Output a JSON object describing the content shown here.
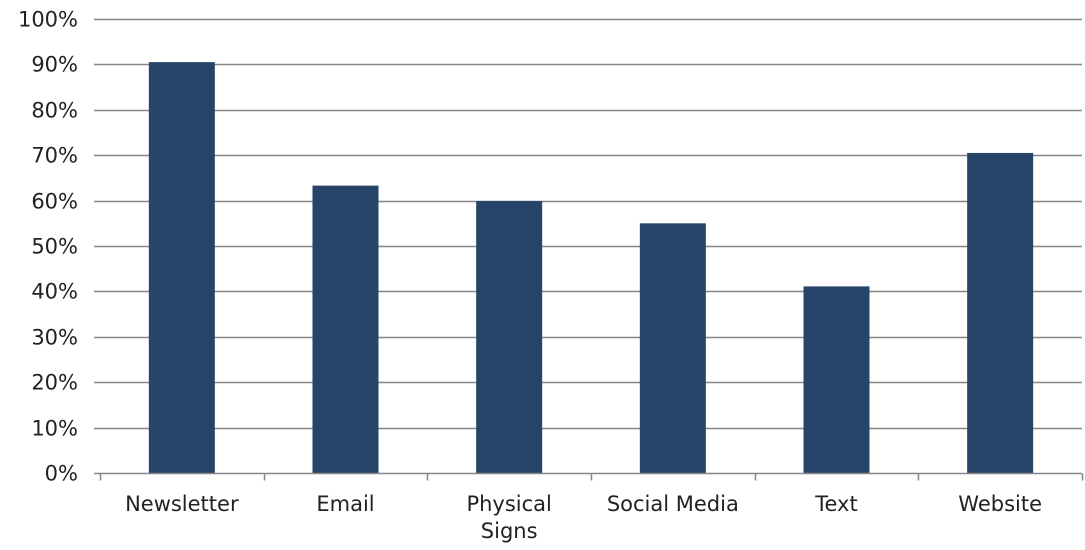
{
  "chart_data": {
    "type": "bar",
    "title": "",
    "xlabel": "",
    "ylabel": "",
    "categories": [
      "Newsletter",
      "Email",
      "Physical Signs",
      "Social Media",
      "Text",
      "Website"
    ],
    "category_lines": [
      [
        "Newsletter"
      ],
      [
        "Email"
      ],
      [
        "Physical",
        "Signs"
      ],
      [
        "Social Media"
      ],
      [
        "Text"
      ],
      [
        "Website"
      ]
    ],
    "values": [
      90.5,
      63.3,
      59.9,
      55.0,
      41.1,
      70.5
    ],
    "ylim": [
      0,
      100
    ],
    "yticks": [
      0,
      10,
      20,
      30,
      40,
      50,
      60,
      70,
      80,
      90,
      100
    ],
    "ytick_labels": [
      "0%",
      "10%",
      "20%",
      "30%",
      "40%",
      "50%",
      "60%",
      "70%",
      "80%",
      "90%",
      "100%"
    ],
    "grid": true,
    "legend": "none",
    "colors": {
      "bar": "#264468",
      "grid": "#868686",
      "axis": "#868686",
      "text": "#222222"
    }
  }
}
